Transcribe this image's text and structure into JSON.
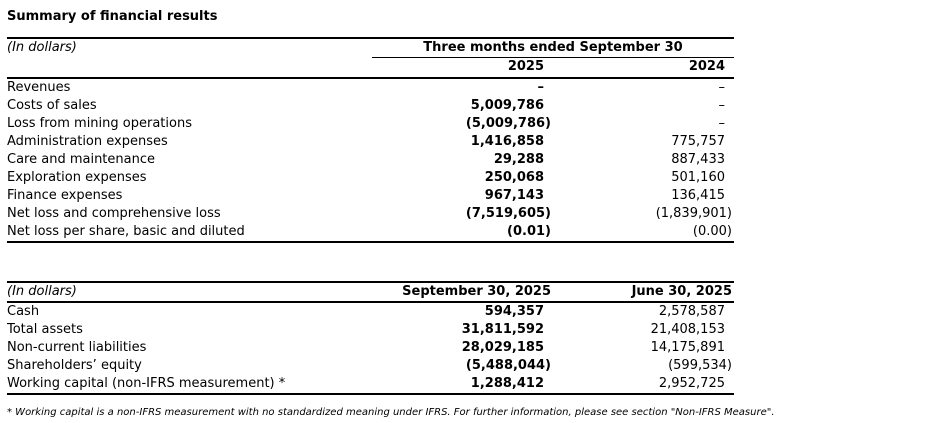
{
  "page": {
    "title": "Summary of financial results"
  },
  "table1": {
    "unit_label": "(In dollars)",
    "span_header": "Three months ended September 30",
    "col_headers": [
      "2025",
      "2024"
    ],
    "rows": [
      {
        "label": "Revenues",
        "c1": "–",
        "c2": "–"
      },
      {
        "label": "Costs of sales",
        "c1": "5,009,786",
        "c2": "–"
      },
      {
        "label": "Loss from mining operations",
        "c1": "(5,009,786)",
        "c2": "–"
      },
      {
        "label": "Administration expenses",
        "c1": "1,416,858",
        "c2": "775,757"
      },
      {
        "label": "Care and maintenance",
        "c1": "29,288",
        "c2": "887,433"
      },
      {
        "label": "Exploration expenses",
        "c1": "250,068",
        "c2": "501,160"
      },
      {
        "label": "Finance expenses",
        "c1": "967,143",
        "c2": "136,415"
      },
      {
        "label": "Net loss and comprehensive loss",
        "c1": "(7,519,605)",
        "c2": "(1,839,901)"
      },
      {
        "label": "Net loss per share, basic and diluted",
        "c1": "(0.01)",
        "c2": "(0.00)"
      }
    ]
  },
  "table2": {
    "unit_label": "(In dollars)",
    "col_headers": [
      "September 30, 2025",
      "June 30, 2025"
    ],
    "rows": [
      {
        "label": "Cash",
        "c1": "594,357",
        "c2": "2,578,587"
      },
      {
        "label": "Total assets",
        "c1": "31,811,592",
        "c2": "21,408,153"
      },
      {
        "label": "Non-current liabilities",
        "c1": "28,029,185",
        "c2": "14,175,891"
      },
      {
        "label": "Shareholders’ equity",
        "c1": "(5,488,044)",
        "c2": "(599,534)"
      },
      {
        "label": "Working capital (non-IFRS measurement) *",
        "c1": "1,288,412",
        "c2": "2,952,725"
      }
    ]
  },
  "footnote": "* Working capital is a non-IFRS measurement with no standardized meaning under IFRS. For further information, please see section \"Non-IFRS Measure\"."
}
